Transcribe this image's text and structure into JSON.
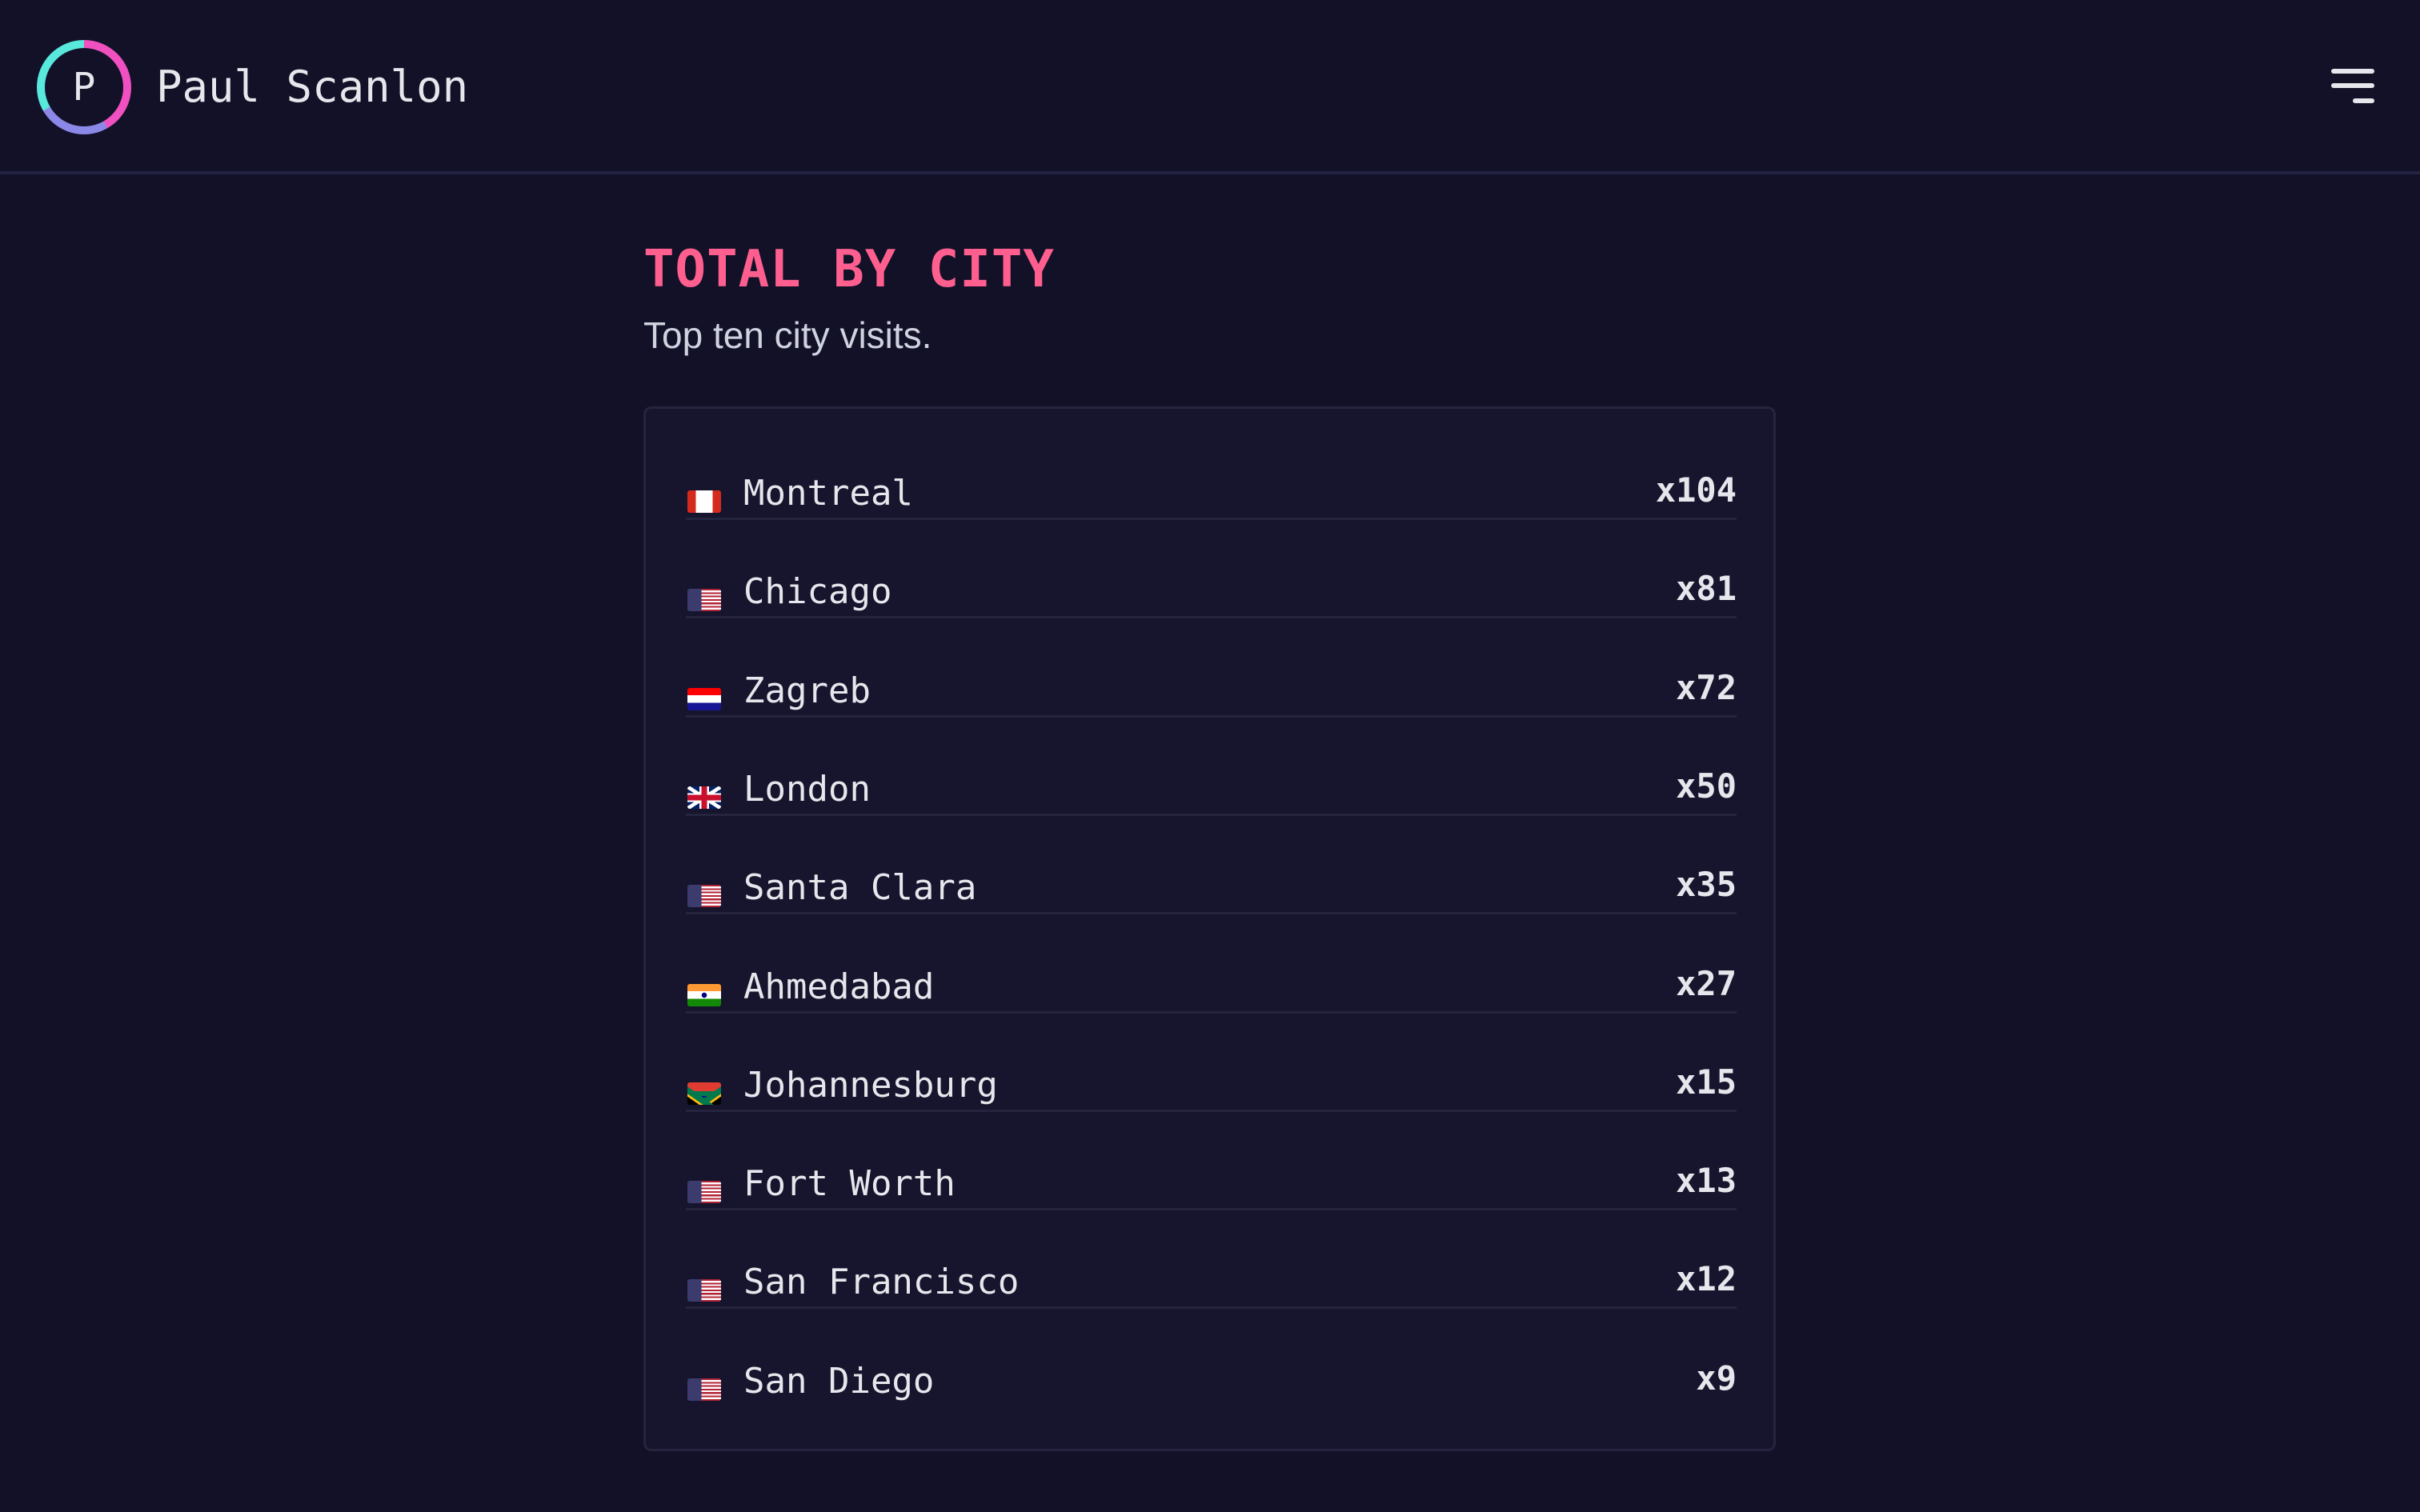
{
  "header": {
    "logo_letter": "P",
    "site_name": "Paul Scanlon",
    "menu_icon": "hamburger-icon"
  },
  "section": {
    "title": "TOTAL BY CITY",
    "subtitle": "Top ten city visits."
  },
  "cities": [
    {
      "flag": "CA",
      "name": "Montreal",
      "count": "x104"
    },
    {
      "flag": "US",
      "name": "Chicago",
      "count": "x81"
    },
    {
      "flag": "HR",
      "name": "Zagreb",
      "count": "x72"
    },
    {
      "flag": "GB",
      "name": "London",
      "count": "x50"
    },
    {
      "flag": "US",
      "name": "Santa Clara",
      "count": "x35"
    },
    {
      "flag": "IN",
      "name": "Ahmedabad",
      "count": "x27"
    },
    {
      "flag": "ZA",
      "name": "Johannesburg",
      "count": "x15"
    },
    {
      "flag": "US",
      "name": "Fort Worth",
      "count": "x13"
    },
    {
      "flag": "US",
      "name": "San Francisco",
      "count": "x12"
    },
    {
      "flag": "US",
      "name": "San Diego",
      "count": "x9"
    }
  ],
  "colors": {
    "background": "#121128",
    "accent": "#ff5f8f",
    "card": "#16152d"
  }
}
